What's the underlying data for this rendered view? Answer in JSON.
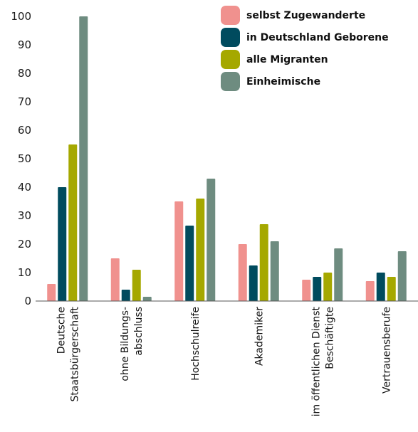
{
  "chart_data": {
    "type": "bar",
    "categories": [
      [
        "Deutsche",
        "Staatsbürgerschaft"
      ],
      [
        "ohne Bildungs-",
        "abschluss"
      ],
      [
        "Hochschulreife"
      ],
      [
        "Akademiker"
      ],
      [
        "im öffentlichen Dienst",
        "Beschäftigte"
      ],
      [
        "Vertrauensberufe"
      ]
    ],
    "series": [
      {
        "name": "selbst Zugewanderte",
        "color": "#f0918e",
        "values": [
          6,
          15,
          35,
          20,
          7.5,
          7
        ]
      },
      {
        "name": "in Deutschland Geborene",
        "color": "#004b5e",
        "values": [
          40,
          4,
          26.5,
          12.5,
          8.5,
          10
        ]
      },
      {
        "name": "alle Migranten",
        "color": "#a5a800",
        "values": [
          55,
          11,
          36,
          27,
          10,
          8.5
        ]
      },
      {
        "name": "Einheimische",
        "color": "#6e8c80",
        "values": [
          100,
          1.5,
          43,
          21,
          18.5,
          17.5
        ]
      }
    ],
    "yticks": [
      0,
      10,
      20,
      30,
      40,
      50,
      60,
      70,
      80,
      90,
      100
    ],
    "ylim": [
      0,
      100
    ],
    "grid": false,
    "legend_position": "top-right"
  }
}
